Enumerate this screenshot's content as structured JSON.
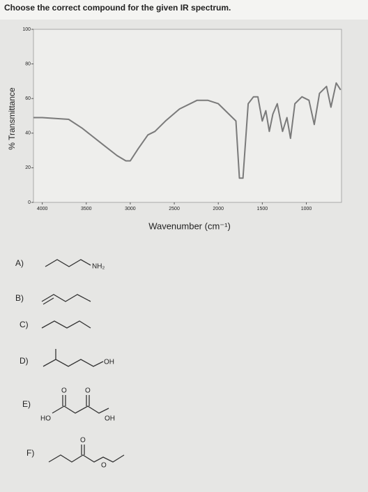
{
  "question": "Choose the correct compound for the given IR spectrum.",
  "chart_data": {
    "type": "line",
    "x_label": "Wavenumber (cm⁻¹)",
    "y_label": "% Transmittance",
    "xlim": [
      4100,
      600
    ],
    "ylim": [
      0,
      100
    ],
    "xticks": [
      4000,
      3500,
      3000,
      2500,
      2000,
      1500,
      1000
    ],
    "yticks": [
      0,
      20,
      40,
      60,
      80,
      100
    ],
    "grid": false,
    "color": "#7a7a7a",
    "x": [
      4100,
      4000,
      3700,
      3550,
      3300,
      3150,
      3050,
      3000,
      2910,
      2800,
      2720,
      2600,
      2440,
      2240,
      2120,
      2000,
      1880,
      1800,
      1760,
      1720,
      1660,
      1600,
      1550,
      1500,
      1460,
      1420,
      1380,
      1330,
      1270,
      1220,
      1180,
      1130,
      1050,
      970,
      910,
      850,
      770,
      720,
      660,
      610
    ],
    "values": [
      49,
      49,
      48,
      43,
      33,
      27,
      24,
      24,
      31,
      39,
      41,
      47,
      54,
      59,
      59,
      57,
      51,
      47,
      14,
      14,
      57,
      61,
      61,
      47,
      53,
      41,
      51,
      57,
      41,
      49,
      37,
      57,
      61,
      59,
      45,
      63,
      67,
      55,
      69,
      65
    ]
  },
  "options": [
    {
      "label": "A)",
      "groups": [
        "NH₂"
      ]
    },
    {
      "label": "B)",
      "groups": []
    },
    {
      "label": "C)",
      "groups": []
    },
    {
      "label": "D)",
      "groups": [
        "OH"
      ]
    },
    {
      "label": "E)",
      "groups": [
        "HO",
        "O",
        "O",
        "OH"
      ]
    },
    {
      "label": "F)",
      "groups": [
        "O",
        "O"
      ]
    }
  ]
}
